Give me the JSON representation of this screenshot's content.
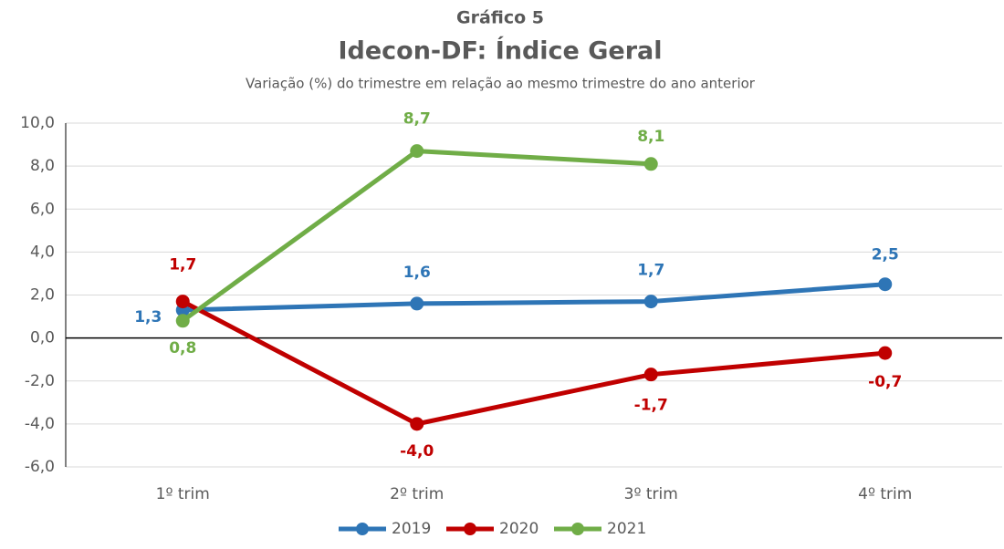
{
  "chart_data": {
    "type": "line",
    "title": "Gráfico 5",
    "subtitle_main": "Idecon-DF: Índice Geral",
    "subtitle": "Variação (%) do trimestre em relação ao mesmo trimestre do ano anterior",
    "categories": [
      "1º trim",
      "2º trim",
      "3º trim",
      "4º trim"
    ],
    "series": [
      {
        "name": "2019",
        "color": "#2e75b6",
        "values": [
          1.3,
          1.6,
          1.7,
          2.5
        ],
        "value_labels": [
          "1,3",
          "1,6",
          "1,7",
          "2,5"
        ]
      },
      {
        "name": "2020",
        "color": "#c00000",
        "values": [
          1.7,
          -4.0,
          -1.7,
          -0.7
        ],
        "value_labels": [
          "1,7",
          "-4,0",
          "-1,7",
          "-0,7"
        ]
      },
      {
        "name": "2021",
        "color": "#70ad47",
        "values": [
          0.8,
          8.7,
          8.1,
          null
        ],
        "value_labels": [
          "0,8",
          "8,7",
          "8,1",
          null
        ]
      }
    ],
    "ylim": [
      -6,
      10
    ],
    "yticks": [
      {
        "value": -6,
        "label": "-6,0"
      },
      {
        "value": -4,
        "label": "-4,0"
      },
      {
        "value": -2,
        "label": "-2,0"
      },
      {
        "value": 0,
        "label": "0,0"
      },
      {
        "value": 2,
        "label": "2,0"
      },
      {
        "value": 4,
        "label": "4,0"
      },
      {
        "value": 6,
        "label": "6,0"
      },
      {
        "value": 8,
        "label": "8,0"
      },
      {
        "value": 10,
        "label": "10,0"
      }
    ],
    "grid": true,
    "legend": "bottom"
  }
}
